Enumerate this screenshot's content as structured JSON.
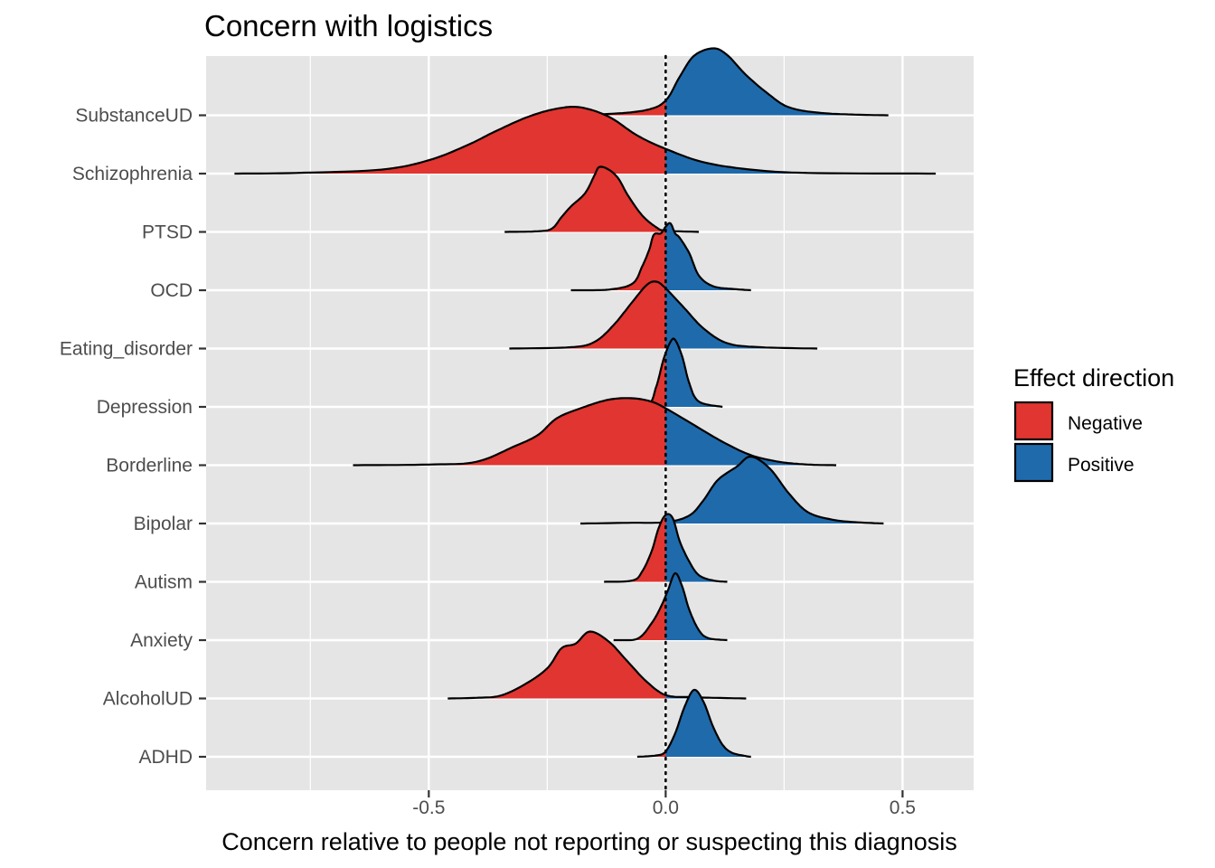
{
  "chart_data": {
    "type": "ridgeline",
    "title": "Concern with logistics",
    "xlabel": "Concern relative to people not reporting or suspecting this diagnosis",
    "ylabel": "",
    "xlim": [
      -0.97,
      0.65
    ],
    "x_ticks": [
      -0.5,
      0.0,
      0.5
    ],
    "x_tick_labels": [
      "-0.5",
      "0.0",
      "0.5"
    ],
    "reference_line": {
      "x": 0,
      "style": "dotted"
    },
    "grid": true,
    "legend": {
      "title": "Effect direction",
      "placement": "right",
      "entries": [
        {
          "label": "Negative",
          "color": "#e03530"
        },
        {
          "label": "Positive",
          "color": "#1f6aab"
        }
      ]
    },
    "categories": [
      "ADHD",
      "AlcoholUD",
      "Anxiety",
      "Autism",
      "Bipolar",
      "Borderline",
      "Depression",
      "Eating_disorder",
      "OCD",
      "PTSD",
      "Schizophrenia",
      "SubstanceUD"
    ],
    "series": [
      {
        "category": "ADHD",
        "points": [
          [
            -0.06,
            0
          ],
          [
            -0.02,
            0.02
          ],
          [
            0,
            0.08
          ],
          [
            0.02,
            0.35
          ],
          [
            0.04,
            0.75
          ],
          [
            0.06,
            1.0
          ],
          [
            0.08,
            0.82
          ],
          [
            0.1,
            0.45
          ],
          [
            0.12,
            0.18
          ],
          [
            0.14,
            0.06
          ],
          [
            0.17,
            0.01
          ],
          [
            0.18,
            0
          ]
        ]
      },
      {
        "category": "AlcoholUD",
        "points": [
          [
            -0.46,
            0
          ],
          [
            -0.4,
            0.01
          ],
          [
            -0.35,
            0.04
          ],
          [
            -0.3,
            0.2
          ],
          [
            -0.25,
            0.45
          ],
          [
            -0.22,
            0.75
          ],
          [
            -0.19,
            0.82
          ],
          [
            -0.16,
            1.0
          ],
          [
            -0.12,
            0.85
          ],
          [
            -0.08,
            0.55
          ],
          [
            -0.04,
            0.25
          ],
          [
            0,
            0.05
          ],
          [
            0.05,
            0.02
          ],
          [
            0.1,
            0.01
          ],
          [
            0.17,
            0
          ]
        ]
      },
      {
        "category": "Anxiety",
        "points": [
          [
            -0.11,
            0
          ],
          [
            -0.06,
            0.02
          ],
          [
            -0.03,
            0.25
          ],
          [
            -0.01,
            0.5
          ],
          [
            0.005,
            0.75
          ],
          [
            0.02,
            1.0
          ],
          [
            0.035,
            0.8
          ],
          [
            0.05,
            0.45
          ],
          [
            0.07,
            0.15
          ],
          [
            0.09,
            0.03
          ],
          [
            0.13,
            0
          ]
        ]
      },
      {
        "category": "Autism",
        "points": [
          [
            -0.13,
            0
          ],
          [
            -0.07,
            0.02
          ],
          [
            -0.05,
            0.15
          ],
          [
            -0.03,
            0.45
          ],
          [
            -0.015,
            0.8
          ],
          [
            0,
            1.0
          ],
          [
            0.015,
            0.95
          ],
          [
            0.03,
            0.6
          ],
          [
            0.05,
            0.3
          ],
          [
            0.07,
            0.1
          ],
          [
            0.1,
            0.02
          ],
          [
            0.13,
            0
          ]
        ]
      },
      {
        "category": "Bipolar",
        "points": [
          [
            -0.18,
            0
          ],
          [
            -0.08,
            0.01
          ],
          [
            0,
            0.02
          ],
          [
            0.05,
            0.12
          ],
          [
            0.08,
            0.35
          ],
          [
            0.11,
            0.65
          ],
          [
            0.15,
            0.85
          ],
          [
            0.18,
            1.0
          ],
          [
            0.22,
            0.82
          ],
          [
            0.26,
            0.45
          ],
          [
            0.3,
            0.17
          ],
          [
            0.35,
            0.06
          ],
          [
            0.4,
            0.02
          ],
          [
            0.46,
            0
          ]
        ]
      },
      {
        "category": "Borderline",
        "points": [
          [
            -0.66,
            0
          ],
          [
            -0.5,
            0.01
          ],
          [
            -0.4,
            0.05
          ],
          [
            -0.32,
            0.28
          ],
          [
            -0.27,
            0.45
          ],
          [
            -0.23,
            0.7
          ],
          [
            -0.18,
            0.85
          ],
          [
            -0.12,
            0.98
          ],
          [
            -0.07,
            1.0
          ],
          [
            -0.03,
            0.95
          ],
          [
            0,
            0.85
          ],
          [
            0.06,
            0.6
          ],
          [
            0.12,
            0.35
          ],
          [
            0.18,
            0.15
          ],
          [
            0.24,
            0.05
          ],
          [
            0.3,
            0.01
          ],
          [
            0.36,
            0
          ]
        ]
      },
      {
        "category": "Depression",
        "points": [
          [
            -0.11,
            0
          ],
          [
            -0.04,
            0.02
          ],
          [
            -0.02,
            0.3
          ],
          [
            -0.005,
            0.7
          ],
          [
            0.01,
            0.97
          ],
          [
            0.02,
            1.0
          ],
          [
            0.035,
            0.75
          ],
          [
            0.05,
            0.35
          ],
          [
            0.07,
            0.08
          ],
          [
            0.12,
            0
          ]
        ]
      },
      {
        "category": "Eating_disorder",
        "points": [
          [
            -0.33,
            0
          ],
          [
            -0.2,
            0.02
          ],
          [
            -0.15,
            0.1
          ],
          [
            -0.11,
            0.35
          ],
          [
            -0.07,
            0.7
          ],
          [
            -0.04,
            0.95
          ],
          [
            -0.02,
            1.0
          ],
          [
            0,
            0.9
          ],
          [
            0.04,
            0.6
          ],
          [
            0.08,
            0.3
          ],
          [
            0.13,
            0.08
          ],
          [
            0.2,
            0.02
          ],
          [
            0.32,
            0
          ]
        ]
      },
      {
        "category": "OCD",
        "points": [
          [
            -0.2,
            0
          ],
          [
            -0.12,
            0.01
          ],
          [
            -0.07,
            0.1
          ],
          [
            -0.05,
            0.35
          ],
          [
            -0.035,
            0.6
          ],
          [
            -0.025,
            0.83
          ],
          [
            -0.01,
            0.85
          ],
          [
            0,
            0.95
          ],
          [
            0.01,
            1.0
          ],
          [
            0.02,
            0.85
          ],
          [
            0.03,
            0.78
          ],
          [
            0.05,
            0.55
          ],
          [
            0.07,
            0.22
          ],
          [
            0.1,
            0.06
          ],
          [
            0.14,
            0.02
          ],
          [
            0.18,
            0
          ]
        ]
      },
      {
        "category": "PTSD",
        "points": [
          [
            -0.34,
            0
          ],
          [
            -0.27,
            0.01
          ],
          [
            -0.24,
            0.05
          ],
          [
            -0.22,
            0.22
          ],
          [
            -0.2,
            0.38
          ],
          [
            -0.17,
            0.58
          ],
          [
            -0.15,
            0.85
          ],
          [
            -0.14,
            0.97
          ],
          [
            -0.12,
            0.93
          ],
          [
            -0.1,
            0.8
          ],
          [
            -0.08,
            0.55
          ],
          [
            -0.05,
            0.25
          ],
          [
            -0.02,
            0.07
          ],
          [
            0,
            0.02
          ],
          [
            0.07,
            0
          ]
        ]
      },
      {
        "category": "Schizophrenia",
        "points": [
          [
            -0.91,
            0
          ],
          [
            -0.78,
            0.01
          ],
          [
            -0.6,
            0.06
          ],
          [
            -0.5,
            0.2
          ],
          [
            -0.42,
            0.42
          ],
          [
            -0.36,
            0.63
          ],
          [
            -0.29,
            0.85
          ],
          [
            -0.23,
            0.97
          ],
          [
            -0.18,
            0.99
          ],
          [
            -0.12,
            0.85
          ],
          [
            -0.06,
            0.57
          ],
          [
            0,
            0.37
          ],
          [
            0.08,
            0.17
          ],
          [
            0.18,
            0.06
          ],
          [
            0.3,
            0.01
          ],
          [
            0.57,
            0
          ]
        ]
      },
      {
        "category": "SubstanceUD",
        "points": [
          [
            -0.25,
            0
          ],
          [
            -0.12,
            0.02
          ],
          [
            -0.04,
            0.08
          ],
          [
            0,
            0.22
          ],
          [
            0.03,
            0.58
          ],
          [
            0.06,
            0.89
          ],
          [
            0.1,
            1.0
          ],
          [
            0.13,
            0.9
          ],
          [
            0.17,
            0.6
          ],
          [
            0.22,
            0.3
          ],
          [
            0.26,
            0.12
          ],
          [
            0.32,
            0.04
          ],
          [
            0.4,
            0.01
          ],
          [
            0.47,
            0
          ]
        ]
      }
    ]
  }
}
